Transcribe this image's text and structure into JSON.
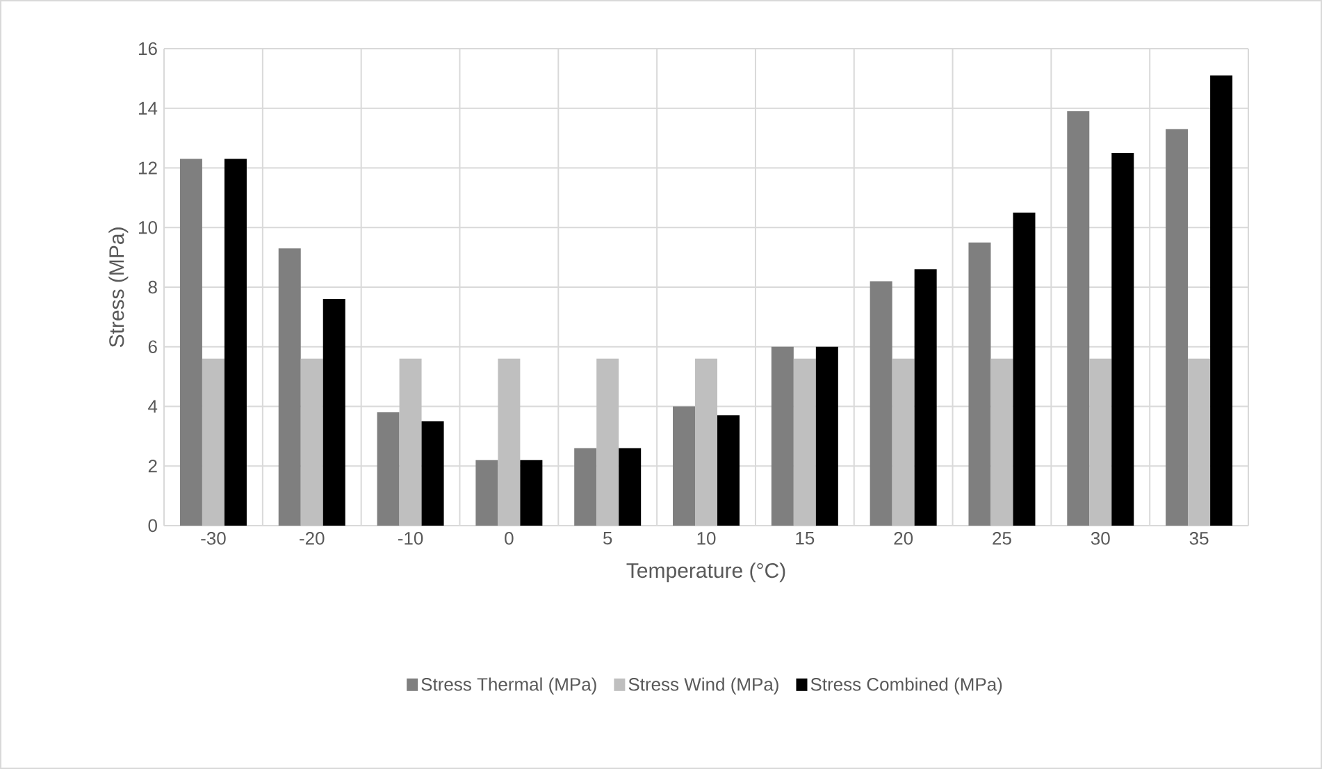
{
  "chart_data": {
    "type": "bar",
    "xlabel": "Temperature (°C)",
    "ylabel": "Stress (MPa)",
    "categories": [
      "-30",
      "-20",
      "-10",
      "0",
      "5",
      "10",
      "15",
      "20",
      "25",
      "30",
      "35"
    ],
    "series": [
      {
        "name": "Stress Thermal (MPa)",
        "color": "#7f7f7f",
        "values": [
          12.3,
          9.3,
          3.8,
          2.2,
          2.6,
          4.0,
          6.0,
          8.2,
          9.5,
          13.9,
          13.3
        ]
      },
      {
        "name": "Stress Wind (MPa)",
        "color": "#bfbfbf",
        "values": [
          5.6,
          5.6,
          5.6,
          5.6,
          5.6,
          5.6,
          5.6,
          5.6,
          5.6,
          5.6,
          5.6
        ]
      },
      {
        "name": "Stress Combined (MPa)",
        "color": "#000000",
        "values": [
          12.3,
          7.6,
          3.5,
          2.2,
          2.6,
          3.7,
          6.0,
          8.6,
          10.5,
          12.5,
          15.1
        ]
      }
    ],
    "ylim": [
      0,
      16
    ],
    "yticks": [
      0,
      2,
      4,
      6,
      8,
      10,
      12,
      14,
      16
    ],
    "grid": true,
    "legend": "bottom"
  }
}
